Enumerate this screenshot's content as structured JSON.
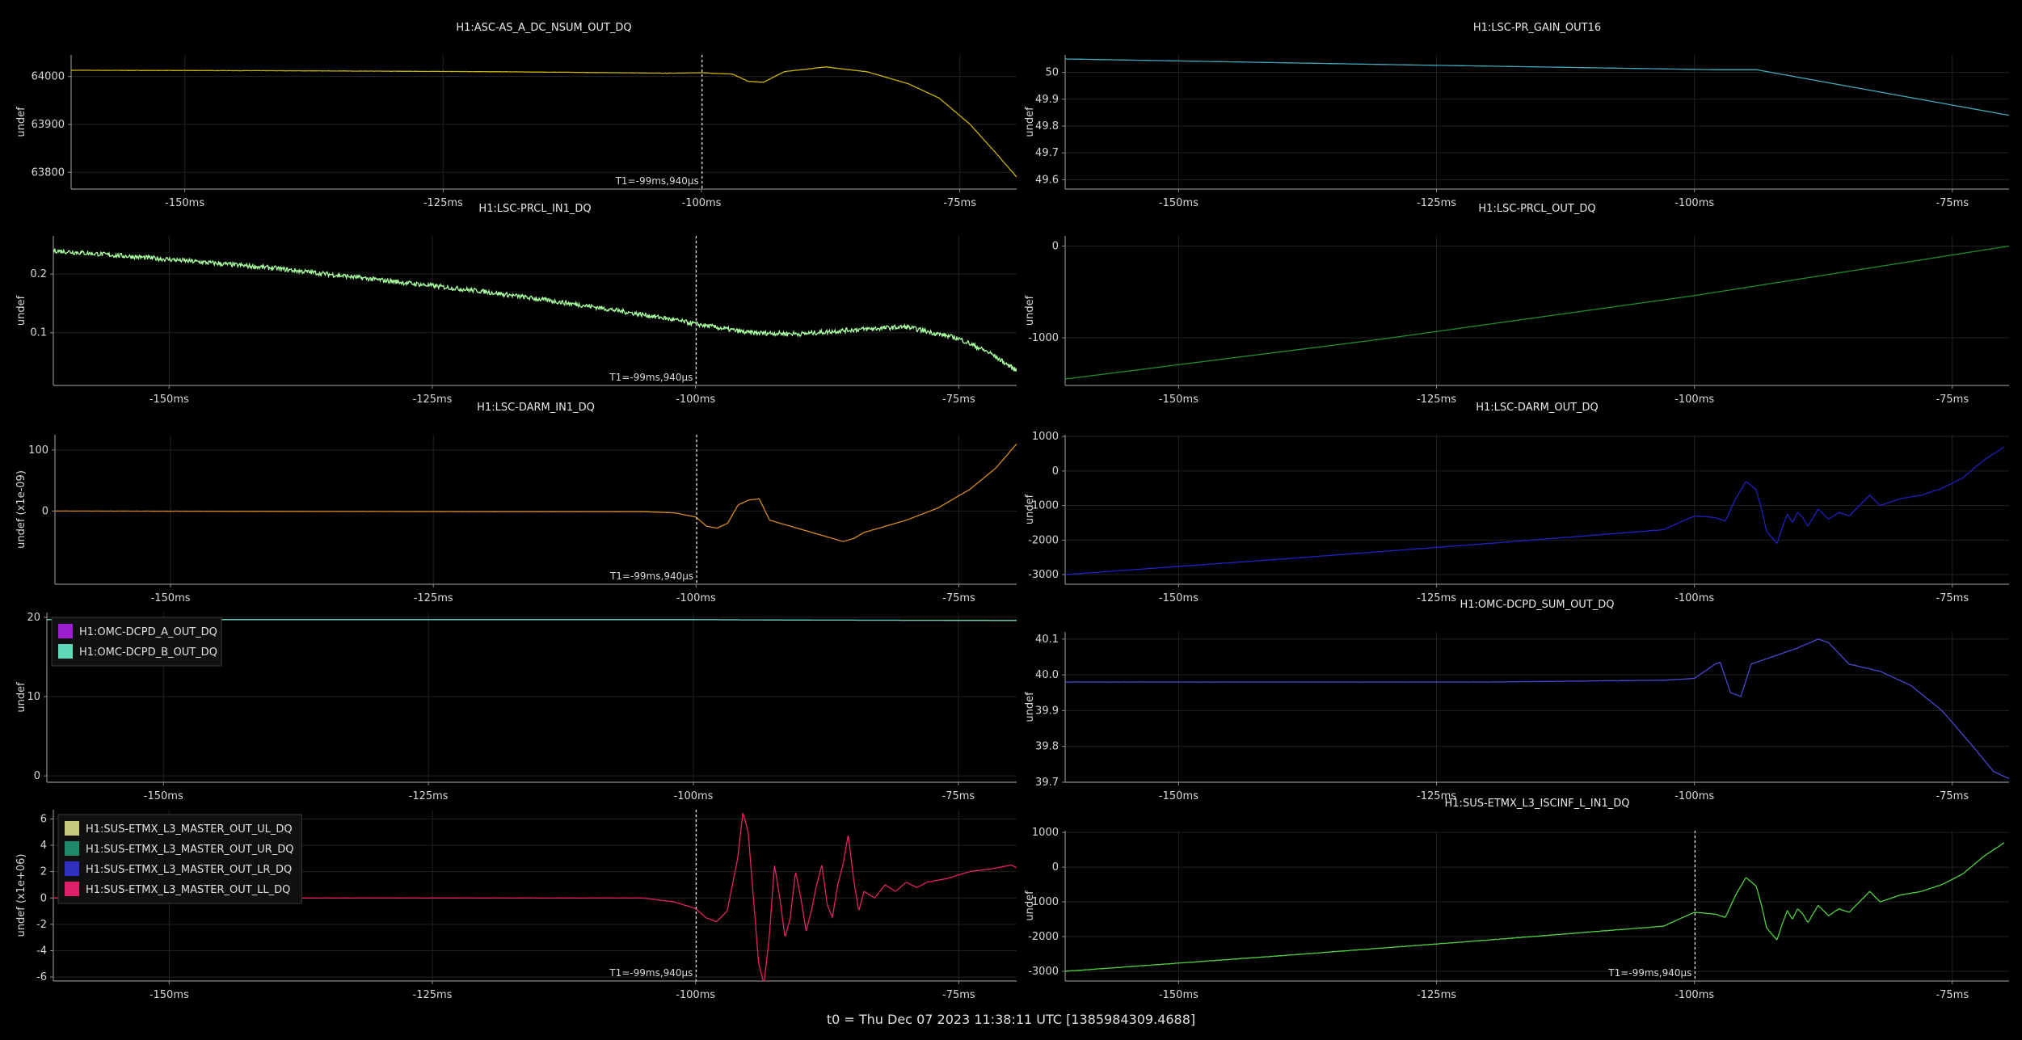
{
  "footer": "t0 = Thu Dec 07 2023 11:38:11 UTC [1385984309.4688]",
  "x_tick_labels": [
    "-150ms",
    "-125ms",
    "-100ms",
    "-75ms"
  ],
  "chart_data": [
    {
      "type": "line",
      "title": "H1:ASC-AS_A_DC_NSUM_OUT_DQ",
      "ylabel": "undef",
      "xlim": [
        -161,
        -69.5
      ],
      "ylim": [
        63765,
        64045
      ],
      "yticks": [
        63800,
        63900,
        64000
      ],
      "yticklabels": [
        "63800",
        "63900",
        "64000"
      ],
      "xticks": [
        -150,
        -125,
        -100,
        -75
      ],
      "cursor": -99.94,
      "cursor_label": "T1=-99ms,940µs",
      "series": [
        {
          "color": "#c8b400",
          "noise": 0.6,
          "x": [
            -161,
            -140,
            -120,
            -103,
            -100,
            -97,
            -95.5,
            -94,
            -92,
            -88,
            -84,
            -80,
            -77,
            -74,
            -71.5,
            -69.5
          ],
          "y": [
            64013,
            64012,
            64010,
            64007,
            64008,
            64005,
            63990,
            63988,
            64010,
            64020,
            64010,
            63985,
            63955,
            63900,
            63840,
            63790
          ]
        }
      ]
    },
    {
      "type": "line",
      "title": "H1:LSC-PR_GAIN_OUT16",
      "ylabel": "undef",
      "xlim": [
        -161,
        -69.5
      ],
      "ylim": [
        49.565,
        50.065
      ],
      "yticks": [
        49.6,
        49.7,
        49.8,
        49.9,
        50
      ],
      "yticklabels": [
        "49.6",
        "49.7",
        "49.8",
        "49.9",
        "50"
      ],
      "xticks": [
        -150,
        -125,
        -100,
        -75
      ],
      "series": [
        {
          "color": "#40a8b8",
          "noise": 0,
          "x": [
            -161,
            -131,
            -98,
            -94,
            -69.5
          ],
          "y": [
            50.05,
            50.03,
            50.01,
            50.01,
            49.84
          ]
        }
      ]
    },
    {
      "type": "line",
      "title": "H1:LSC-PRCL_IN1_DQ",
      "ylabel": "undef",
      "xlim": [
        -161,
        -69.5
      ],
      "ylim": [
        0.01,
        0.265
      ],
      "yticks": [
        0.1,
        0.2
      ],
      "yticklabels": [
        "0.1",
        "0.2"
      ],
      "xticks": [
        -150,
        -125,
        -100,
        -75
      ],
      "cursor": -99.94,
      "cursor_label": "T1=-99ms,940µs",
      "series": [
        {
          "color": "#a8ffa0",
          "noise": 0.008,
          "x": [
            -161,
            -150,
            -140,
            -130,
            -120,
            -110,
            -103,
            -100,
            -95,
            -90,
            -85,
            -80,
            -75,
            -72,
            -69.5
          ],
          "y": [
            0.24,
            0.225,
            0.21,
            0.19,
            0.17,
            0.145,
            0.125,
            0.115,
            0.1,
            0.098,
            0.105,
            0.11,
            0.09,
            0.065,
            0.035
          ]
        }
      ]
    },
    {
      "type": "line",
      "title": "H1:LSC-PRCL_OUT_DQ",
      "ylabel": "undef",
      "xlim": [
        -161,
        -69.5
      ],
      "ylim": [
        -1520,
        110
      ],
      "yticks": [
        -1000,
        0
      ],
      "yticklabels": [
        "-1000",
        "0"
      ],
      "xticks": [
        -150,
        -125,
        -100,
        -75
      ],
      "series": [
        {
          "color": "#1f8a2a",
          "noise": 0,
          "x": [
            -161,
            -130,
            -100,
            -69.5
          ],
          "y": [
            -1450,
            -1010,
            -540,
            0
          ]
        }
      ]
    },
    {
      "type": "line",
      "title": "H1:LSC-DARM_IN1_DQ",
      "ylabel": "undef (x1e-09)",
      "xlim": [
        -161,
        -69.5
      ],
      "ylim": [
        -120,
        125
      ],
      "yticks": [
        0,
        100
      ],
      "yticklabels": [
        "0",
        "100"
      ],
      "xticks": [
        -150,
        -125,
        -100,
        -75
      ],
      "cursor": -99.94,
      "cursor_label": "T1=-99ms,940µs",
      "series": [
        {
          "color": "#d88a20",
          "noise": 0.3,
          "x": [
            -161,
            -140,
            -120,
            -105,
            -102,
            -100,
            -99,
            -98,
            -97,
            -96,
            -95,
            -94,
            -93,
            -89,
            -86,
            -85,
            -84,
            -82,
            -80,
            -77,
            -74,
            -71.5,
            -69.5
          ],
          "y": [
            0,
            -0.5,
            -1,
            -1,
            -3,
            -10,
            -25,
            -28,
            -20,
            10,
            18,
            20,
            -15,
            -35,
            -50,
            -45,
            -35,
            -25,
            -15,
            5,
            35,
            70,
            110
          ]
        }
      ]
    },
    {
      "type": "line",
      "title": "H1:LSC-DARM_OUT_DQ",
      "ylabel": "undef",
      "xlim": [
        -161,
        -69.5
      ],
      "ylim": [
        -3280,
        1050
      ],
      "yticks": [
        -3000,
        -2000,
        -1000,
        0,
        1000
      ],
      "yticklabels": [
        "-3000",
        "-2000",
        "-1000",
        "0",
        "1000"
      ],
      "xticks": [
        -150,
        -125,
        -100,
        -75
      ],
      "series": [
        {
          "color": "#2020c0",
          "noise": 12,
          "x": [
            -161,
            -140,
            -120,
            -103,
            -100,
            -98,
            -97,
            -96,
            -95,
            -94,
            -93.5,
            -93,
            -92,
            -91.5,
            -91,
            -90.5,
            -90,
            -89.5,
            -89,
            -88,
            -87,
            -86,
            -85,
            -84,
            -83,
            -82,
            -81,
            -80,
            -78,
            -76,
            -74,
            -72,
            -70
          ],
          "y": [
            -3000,
            -2550,
            -2100,
            -1700,
            -1300,
            -1350,
            -1450,
            -800,
            -300,
            -550,
            -1100,
            -1750,
            -2100,
            -1650,
            -1250,
            -1500,
            -1200,
            -1350,
            -1600,
            -1100,
            -1400,
            -1200,
            -1300,
            -1000,
            -700,
            -1000,
            -900,
            -800,
            -700,
            -500,
            -200,
            300,
            700
          ]
        }
      ]
    },
    {
      "type": "line",
      "title": "",
      "ylabel": "undef",
      "xlim": [
        -161,
        -69.5
      ],
      "ylim": [
        -0.8,
        20.6
      ],
      "yticks": [
        0,
        10,
        20
      ],
      "yticklabels": [
        "0",
        "10",
        "20"
      ],
      "xticks": [
        -150,
        -125,
        -100,
        -75
      ],
      "legend": "top-left",
      "series": [
        {
          "name": "H1:OMC-DCPD_A_OUT_DQ",
          "color": "#9b1fd0",
          "noise": 0,
          "x": [
            -161,
            -100,
            -90,
            -69.5
          ],
          "y": [
            19.7,
            19.7,
            19.65,
            19.6
          ]
        },
        {
          "name": "H1:OMC-DCPD_B_OUT_DQ",
          "color": "#5fd8b8",
          "noise": 0,
          "x": [
            -161,
            -100,
            -90,
            -69.5
          ],
          "y": [
            19.7,
            19.7,
            19.65,
            19.6
          ]
        }
      ]
    },
    {
      "type": "line",
      "title": "H1:OMC-DCPD_SUM_OUT_DQ",
      "ylabel": "undef",
      "xlim": [
        -161,
        -69.5
      ],
      "ylim": [
        39.7,
        40.12
      ],
      "yticks": [
        39.7,
        39.8,
        39.9,
        40.0,
        40.1
      ],
      "yticklabels": [
        "39.7",
        "39.8",
        "39.9",
        "40.0",
        "40.1"
      ],
      "xticks": [
        -150,
        -125,
        -100,
        -75
      ],
      "series": [
        {
          "color": "#4848d0",
          "noise": 0.001,
          "x": [
            -161,
            -120,
            -103,
            -100,
            -98,
            -97.5,
            -96.5,
            -95.5,
            -94.5,
            -93,
            -90,
            -88,
            -87,
            -85,
            -82,
            -79,
            -76,
            -73,
            -71,
            -69.5
          ],
          "y": [
            39.98,
            39.98,
            39.985,
            39.99,
            40.03,
            40.035,
            39.95,
            39.94,
            40.03,
            40.045,
            40.075,
            40.1,
            40.09,
            40.03,
            40.01,
            39.97,
            39.9,
            39.8,
            39.73,
            39.71
          ]
        }
      ]
    },
    {
      "type": "line",
      "title": "",
      "ylabel": "undef (x1e+06)",
      "xlim": [
        -161,
        -69.5
      ],
      "ylim": [
        -6.3,
        6.7
      ],
      "yticks": [
        -6,
        -4,
        -2,
        0,
        2,
        4,
        6
      ],
      "yticklabels": [
        "-6",
        "-4",
        "-2",
        "0",
        "2",
        "4",
        "6"
      ],
      "xticks": [
        -150,
        -125,
        -100,
        -75
      ],
      "cursor": -99.94,
      "cursor_label": "T1=-99ms,940µs",
      "legend": "top-left",
      "series": [
        {
          "name": "H1:SUS-ETMX_L3_MASTER_OUT_UL_DQ",
          "color": "#c8c880",
          "noise": 0,
          "x": [],
          "y": []
        },
        {
          "name": "H1:SUS-ETMX_L3_MASTER_OUT_UR_DQ",
          "color": "#1f8a6a",
          "noise": 0,
          "x": [],
          "y": []
        },
        {
          "name": "H1:SUS-ETMX_L3_MASTER_OUT_LR_DQ",
          "color": "#3030c0",
          "noise": 0,
          "x": [],
          "y": []
        },
        {
          "name": "H1:SUS-ETMX_L3_MASTER_OUT_LL_DQ",
          "color": "#e0206a",
          "noise": 0.03,
          "x": [
            -161,
            -105,
            -102,
            -100,
            -99,
            -98,
            -97,
            -96,
            -95.5,
            -95,
            -94.5,
            -94,
            -93.5,
            -93,
            -92.5,
            -92,
            -91.5,
            -91,
            -90.5,
            -90,
            -89.5,
            -89,
            -88.5,
            -88,
            -87.5,
            -87,
            -86.5,
            -86,
            -85.5,
            -85,
            -84.5,
            -84,
            -83,
            -82,
            -81,
            -80,
            -79,
            -78,
            -76,
            -74,
            -72,
            -70,
            -69.5
          ],
          "y": [
            0,
            0,
            -0.3,
            -0.8,
            -1.5,
            -1.8,
            -1,
            3,
            6.5,
            5,
            0,
            -5,
            -6.5,
            -3,
            2.5,
            0,
            -3,
            -1.5,
            2,
            0,
            -2.5,
            -1,
            1,
            2.5,
            -0.5,
            -1.5,
            1,
            2.5,
            4.8,
            1.5,
            -1,
            0.5,
            0,
            1,
            0.5,
            1.2,
            0.8,
            1.2,
            1.5,
            2,
            2.2,
            2.5,
            2.3
          ]
        }
      ]
    },
    {
      "type": "line",
      "title": "H1:SUS-ETMX_L3_ISCINF_L_IN1_DQ",
      "ylabel": "undef",
      "xlim": [
        -161,
        -69.5
      ],
      "ylim": [
        -3280,
        1050
      ],
      "yticks": [
        -3000,
        -2000,
        -1000,
        0,
        1000
      ],
      "yticklabels": [
        "-3000",
        "-2000",
        "-1000",
        "0",
        "1000"
      ],
      "xticks": [
        -150,
        -125,
        -100,
        -75
      ],
      "cursor": -99.94,
      "cursor_label": "T1=-99ms,940µs",
      "series": [
        {
          "color": "#50d040",
          "noise": 12,
          "x": [
            -161,
            -140,
            -120,
            -103,
            -100,
            -98,
            -97,
            -96,
            -95,
            -94,
            -93.5,
            -93,
            -92,
            -91.5,
            -91,
            -90.5,
            -90,
            -89.5,
            -89,
            -88,
            -87,
            -86,
            -85,
            -84,
            -83,
            -82,
            -81,
            -80,
            -78,
            -76,
            -74,
            -72,
            -70
          ],
          "y": [
            -3000,
            -2550,
            -2100,
            -1700,
            -1300,
            -1350,
            -1450,
            -800,
            -300,
            -550,
            -1100,
            -1750,
            -2100,
            -1650,
            -1250,
            -1500,
            -1200,
            -1350,
            -1600,
            -1100,
            -1400,
            -1200,
            -1300,
            -1000,
            -700,
            -1000,
            -900,
            -800,
            -700,
            -500,
            -200,
            300,
            700
          ]
        }
      ]
    }
  ]
}
